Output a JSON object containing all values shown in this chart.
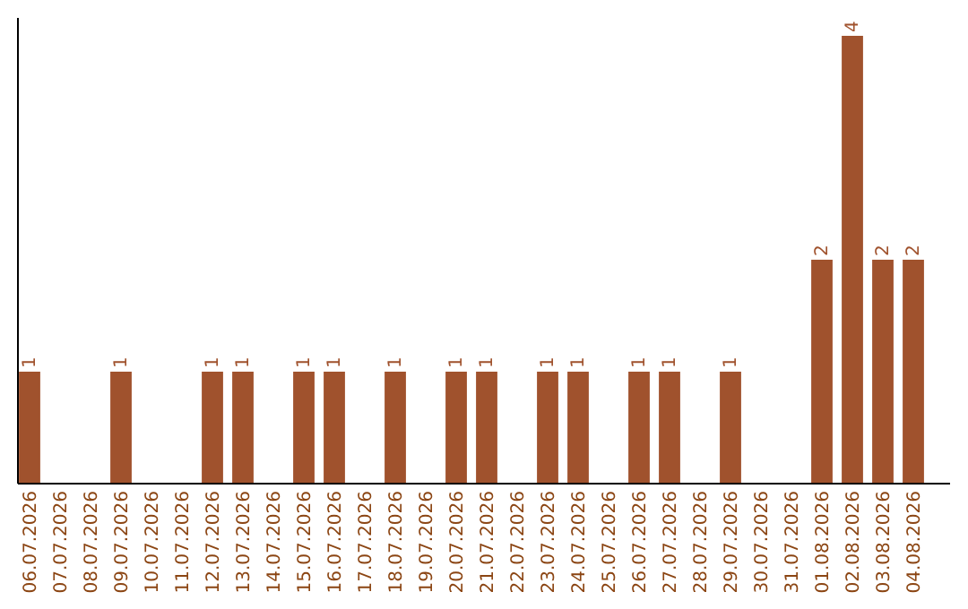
{
  "chart_data": {
    "type": "bar",
    "categories": [
      "06.07.2026",
      "07.07.2026",
      "08.07.2026",
      "09.07.2026",
      "10.07.2026",
      "11.07.2026",
      "12.07.2026",
      "13.07.2026",
      "14.07.2026",
      "15.07.2026",
      "16.07.2026",
      "17.07.2026",
      "18.07.2026",
      "19.07.2026",
      "20.07.2026",
      "21.07.2026",
      "22.07.2026",
      "23.07.2026",
      "24.07.2026",
      "25.07.2026",
      "26.07.2026",
      "27.07.2026",
      "28.07.2026",
      "29.07.2026",
      "30.07.2026",
      "31.07.2026",
      "01.08.2026",
      "02.08.2026",
      "03.08.2026",
      "04.08.2026"
    ],
    "values": [
      1,
      null,
      null,
      1,
      null,
      null,
      1,
      1,
      null,
      1,
      1,
      null,
      1,
      null,
      1,
      1,
      null,
      1,
      1,
      null,
      1,
      1,
      null,
      1,
      null,
      null,
      2,
      4,
      2,
      2
    ],
    "color": "#a0522d",
    "ylim": [
      0,
      4.16
    ],
    "data_labels": true,
    "tick_labels": "x"
  }
}
